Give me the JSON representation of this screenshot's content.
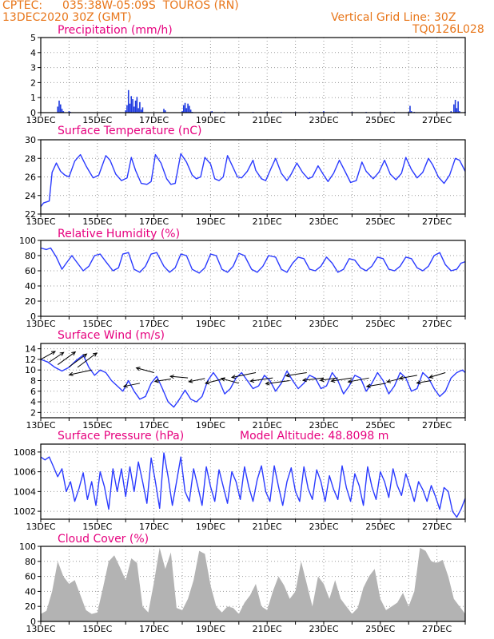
{
  "header": {
    "source": "CPTEC:",
    "location": "035:38W-05:09S  TOUROS (RN)",
    "init_time": "13DEC2020 30Z (GMT)",
    "grid_note": "Vertical Grid Line: 30Z",
    "code": "TQ0126L028"
  },
  "colors": {
    "header": "#e8761a",
    "panel_title": "#e6007e",
    "line": "#2b3bff",
    "bar": "#1f3be0",
    "cloud": "#b3b3b3",
    "arrow": "#000000"
  },
  "date_labels": [
    "13DEC",
    "15DEC",
    "17DEC",
    "19DEC",
    "21DEC",
    "23DEC",
    "25DEC",
    "27DEC"
  ],
  "chart_data": [
    {
      "type": "bar",
      "title": "Precipitation (mm/h)",
      "ylim": [
        0,
        5
      ],
      "yticks": [
        0,
        1,
        2,
        3,
        4,
        5
      ],
      "grid": true,
      "x_days": [
        0.6,
        0.65,
        0.7,
        0.75,
        0.8,
        1.0,
        1.05,
        3.0,
        3.05,
        3.1,
        3.15,
        3.2,
        3.25,
        3.3,
        3.35,
        3.4,
        3.45,
        3.5,
        3.55,
        3.6,
        4.35,
        4.4,
        5.0,
        5.05,
        5.1,
        5.15,
        5.2,
        5.25,
        5.3,
        5.35,
        6.0,
        6.05,
        6.5,
        7.5,
        8.0,
        8.5,
        9.0,
        9.5,
        10.0,
        10.5,
        11.0,
        11.5,
        12.0,
        12.5,
        13.0,
        13.05,
        13.1,
        13.2,
        14.5,
        14.6,
        14.65,
        14.7,
        14.75,
        14.8,
        15.0
      ],
      "values": [
        0.4,
        0.8,
        0.55,
        0.25,
        0.1,
        0.1,
        0.05,
        0.15,
        0.5,
        1.5,
        0.6,
        1.1,
        0.9,
        0.4,
        0.8,
        1.05,
        0.3,
        0.7,
        0.2,
        0.35,
        0.25,
        0.15,
        0.1,
        0.5,
        0.65,
        0.3,
        0.6,
        0.45,
        0.2,
        0.05,
        0.05,
        0.1,
        0.05,
        0.05,
        0.05,
        0.05,
        0.05,
        0.05,
        0.1,
        0.05,
        0.05,
        0.05,
        0.05,
        0.05,
        0.05,
        0.45,
        0.1,
        0.05,
        0.1,
        0.55,
        0.85,
        0.3,
        0.75,
        0.1,
        0.05
      ]
    },
    {
      "type": "line",
      "title": "Surface Temperature (nC)",
      "ylim": [
        22,
        30
      ],
      "yticks": [
        22,
        24,
        26,
        28,
        30
      ],
      "grid": true,
      "x_days": [
        0.0,
        0.1,
        0.3,
        0.4,
        0.55,
        0.7,
        0.85,
        1.0,
        1.2,
        1.4,
        1.6,
        1.75,
        1.85,
        2.05,
        2.3,
        2.45,
        2.65,
        2.85,
        3.05,
        3.2,
        3.35,
        3.55,
        3.75,
        3.9,
        4.05,
        4.25,
        4.45,
        4.6,
        4.75,
        4.95,
        5.15,
        5.35,
        5.5,
        5.65,
        5.8,
        6.0,
        6.15,
        6.3,
        6.45,
        6.6,
        6.8,
        6.95,
        7.1,
        7.3,
        7.5,
        7.6,
        7.8,
        7.95,
        8.15,
        8.3,
        8.5,
        8.7,
        8.85,
        9.05,
        9.25,
        9.45,
        9.6,
        9.8,
        10.0,
        10.15,
        10.35,
        10.55,
        10.75,
        10.95,
        11.15,
        11.35,
        11.5,
        11.75,
        11.95,
        12.15,
        12.35,
        12.55,
        12.75,
        12.9,
        13.1,
        13.3,
        13.5,
        13.7,
        13.85,
        14.05,
        14.25,
        14.45,
        14.65,
        14.8,
        15.0
      ],
      "values": [
        22.8,
        23.2,
        23.4,
        26.5,
        27.5,
        26.6,
        26.2,
        26.0,
        27.7,
        28.4,
        27.2,
        26.4,
        25.9,
        26.2,
        28.3,
        27.8,
        26.3,
        25.6,
        25.9,
        28.1,
        26.7,
        25.3,
        25.2,
        25.5,
        28.4,
        27.5,
        25.8,
        25.2,
        25.3,
        28.5,
        27.6,
        26.2,
        25.8,
        26.0,
        28.1,
        27.4,
        25.8,
        25.6,
        26.0,
        28.3,
        27.0,
        26.0,
        25.9,
        26.6,
        27.8,
        26.7,
        25.8,
        25.6,
        27.0,
        28.0,
        26.4,
        25.6,
        26.3,
        27.5,
        26.5,
        25.8,
        26.0,
        27.2,
        26.2,
        25.5,
        26.4,
        27.8,
        26.6,
        25.4,
        25.6,
        27.6,
        26.6,
        25.8,
        26.5,
        27.8,
        26.3,
        25.7,
        26.4,
        28.1,
        26.8,
        25.9,
        26.5,
        28.0,
        27.3,
        26.0,
        25.3,
        26.2,
        28.0,
        27.8,
        26.6
      ]
    },
    {
      "type": "line",
      "title": "Relative Humidity (%)",
      "ylim": [
        0,
        100
      ],
      "yticks": [
        0,
        20,
        40,
        60,
        80,
        100
      ],
      "grid": true,
      "x_days": [
        0.0,
        0.2,
        0.35,
        0.55,
        0.75,
        0.9,
        1.1,
        1.3,
        1.5,
        1.7,
        1.9,
        2.1,
        2.3,
        2.55,
        2.75,
        2.9,
        3.1,
        3.3,
        3.5,
        3.7,
        3.9,
        4.1,
        4.35,
        4.55,
        4.75,
        4.95,
        5.15,
        5.35,
        5.6,
        5.8,
        6.0,
        6.2,
        6.4,
        6.6,
        6.8,
        7.0,
        7.2,
        7.45,
        7.65,
        7.85,
        8.05,
        8.3,
        8.5,
        8.7,
        8.9,
        9.1,
        9.3,
        9.5,
        9.7,
        9.9,
        10.1,
        10.3,
        10.5,
        10.7,
        10.9,
        11.1,
        11.3,
        11.5,
        11.7,
        11.9,
        12.1,
        12.3,
        12.5,
        12.7,
        12.9,
        13.1,
        13.3,
        13.5,
        13.7,
        13.9,
        14.1,
        14.3,
        14.5,
        14.7,
        14.85,
        15.0
      ],
      "values": [
        90,
        88,
        90,
        78,
        62,
        70,
        80,
        70,
        60,
        66,
        80,
        82,
        72,
        60,
        64,
        82,
        84,
        62,
        58,
        66,
        82,
        84,
        66,
        58,
        64,
        82,
        80,
        62,
        57,
        64,
        82,
        80,
        62,
        58,
        66,
        83,
        80,
        62,
        58,
        66,
        80,
        78,
        62,
        58,
        70,
        78,
        76,
        62,
        60,
        66,
        78,
        70,
        58,
        62,
        76,
        74,
        64,
        60,
        66,
        78,
        76,
        62,
        60,
        66,
        78,
        76,
        64,
        60,
        66,
        80,
        84,
        68,
        60,
        62,
        70,
        72
      ]
    },
    {
      "type": "line",
      "title": "Surface Wind (m/s)",
      "ylim": [
        1,
        15
      ],
      "yticks": [
        2,
        4,
        6,
        8,
        10,
        12,
        14
      ],
      "grid": true,
      "x_days": [
        0.0,
        0.25,
        0.5,
        0.75,
        1.0,
        1.25,
        1.5,
        1.7,
        1.9,
        2.1,
        2.3,
        2.5,
        2.7,
        2.9,
        3.1,
        3.3,
        3.5,
        3.7,
        3.9,
        4.1,
        4.3,
        4.5,
        4.7,
        4.9,
        5.1,
        5.3,
        5.5,
        5.7,
        5.9,
        6.1,
        6.3,
        6.5,
        6.7,
        6.9,
        7.1,
        7.3,
        7.5,
        7.7,
        7.9,
        8.1,
        8.3,
        8.5,
        8.7,
        8.9,
        9.1,
        9.3,
        9.5,
        9.7,
        9.9,
        10.1,
        10.3,
        10.5,
        10.7,
        10.9,
        11.1,
        11.3,
        11.5,
        11.7,
        11.9,
        12.1,
        12.3,
        12.5,
        12.7,
        12.9,
        13.1,
        13.3,
        13.5,
        13.7,
        13.9,
        14.1,
        14.3,
        14.5,
        14.7,
        14.9,
        15.0
      ],
      "values": [
        12.0,
        11.5,
        10.5,
        9.8,
        10.5,
        11.8,
        12.8,
        10.5,
        9.0,
        10.0,
        9.5,
        8.0,
        7.0,
        6.0,
        8.0,
        6.0,
        4.5,
        5.0,
        7.5,
        8.8,
        6.5,
        4.0,
        3.0,
        4.5,
        6.2,
        4.5,
        4.0,
        5.0,
        8.0,
        9.5,
        8.0,
        5.5,
        6.5,
        8.5,
        9.5,
        8.0,
        6.5,
        7.0,
        9.0,
        8.0,
        6.0,
        7.5,
        9.8,
        8.0,
        6.5,
        7.5,
        9.0,
        8.5,
        6.5,
        7.0,
        9.5,
        8.0,
        5.5,
        7.0,
        9.0,
        8.5,
        6.0,
        7.5,
        9.5,
        8.0,
        5.5,
        7.0,
        9.5,
        8.5,
        6.0,
        6.5,
        9.5,
        8.5,
        6.5,
        5.0,
        6.0,
        8.5,
        9.5,
        10.0,
        9.5
      ],
      "arrows": {
        "x_days": [
          0.0,
          0.3,
          0.6,
          1.0,
          1.3,
          1.8,
          3.5,
          4.0,
          4.6,
          5.2,
          5.8,
          6.5,
          7.0,
          7.6,
          8.2,
          8.8,
          9.4,
          10.0,
          10.5,
          11.0,
          11.6,
          12.2,
          12.8,
          13.3,
          13.8,
          14.3
        ],
        "y": [
          12.0,
          11.5,
          11.0,
          10.6,
          10.5,
          10.0,
          7.5,
          9.5,
          8.3,
          8.5,
          8.4,
          8.4,
          7.5,
          9.5,
          8.5,
          8.0,
          9.5,
          8.5,
          8.5,
          8.5,
          8.5,
          7.5,
          8.5,
          9.0,
          8.0,
          9.5
        ],
        "dx": [
          18,
          18,
          22,
          22,
          24,
          -28,
          -20,
          -22,
          -20,
          -22,
          -20,
          -24,
          -22,
          -30,
          -28,
          -30,
          -26,
          -26,
          -22,
          -26,
          -26,
          -24,
          -20,
          -22,
          -18,
          -20
        ],
        "dy": [
          -10,
          -12,
          -16,
          -16,
          -18,
          6,
          4,
          -6,
          3,
          -2,
          4,
          6,
          -6,
          6,
          4,
          4,
          4,
          3,
          3,
          4,
          5,
          4,
          5,
          4,
          3,
          6
        ]
      }
    },
    {
      "type": "line",
      "title": "Surface Pressure (hPa)",
      "annotation": "Model Altitude: 48.8098 m",
      "ylim": [
        1001.2,
        1008.8
      ],
      "yticks": [
        1002,
        1004,
        1006,
        1008
      ],
      "grid": true,
      "x_days": [
        0.0,
        0.15,
        0.3,
        0.45,
        0.6,
        0.75,
        0.9,
        1.05,
        1.2,
        1.35,
        1.5,
        1.65,
        1.8,
        1.95,
        2.1,
        2.25,
        2.4,
        2.55,
        2.7,
        2.85,
        3.0,
        3.15,
        3.3,
        3.45,
        3.6,
        3.75,
        3.9,
        4.05,
        4.2,
        4.35,
        4.5,
        4.65,
        4.8,
        4.95,
        5.1,
        5.25,
        5.4,
        5.55,
        5.7,
        5.85,
        6.0,
        6.15,
        6.3,
        6.45,
        6.6,
        6.75,
        6.9,
        7.05,
        7.2,
        7.35,
        7.5,
        7.65,
        7.8,
        7.95,
        8.1,
        8.25,
        8.4,
        8.55,
        8.7,
        8.85,
        9.0,
        9.15,
        9.3,
        9.45,
        9.6,
        9.75,
        9.9,
        10.05,
        10.2,
        10.35,
        10.5,
        10.65,
        10.8,
        10.95,
        11.1,
        11.25,
        11.4,
        11.55,
        11.7,
        11.85,
        12.0,
        12.15,
        12.3,
        12.45,
        12.6,
        12.75,
        12.9,
        13.05,
        13.2,
        13.35,
        13.5,
        13.65,
        13.8,
        13.95,
        14.1,
        14.25,
        14.4,
        14.55,
        14.7,
        14.85,
        15.0
      ],
      "values": [
        1007.5,
        1007.2,
        1007.5,
        1006.5,
        1005.5,
        1006.3,
        1004.0,
        1005.0,
        1003.0,
        1004.3,
        1005.9,
        1003.2,
        1005.0,
        1002.6,
        1006.0,
        1004.5,
        1002.2,
        1006.3,
        1004.0,
        1006.3,
        1003.5,
        1006.5,
        1004.0,
        1007.0,
        1005.0,
        1002.8,
        1007.4,
        1005.0,
        1002.3,
        1007.9,
        1005.5,
        1002.6,
        1005.0,
        1007.5,
        1004.0,
        1003.0,
        1006.3,
        1004.5,
        1002.6,
        1006.5,
        1004.5,
        1003.0,
        1006.2,
        1004.5,
        1002.8,
        1006.0,
        1005.0,
        1003.2,
        1006.5,
        1004.5,
        1003.0,
        1005.2,
        1006.6,
        1004.0,
        1003.0,
        1006.6,
        1004.5,
        1002.6,
        1005.0,
        1006.4,
        1004.0,
        1003.0,
        1006.5,
        1004.3,
        1003.2,
        1006.2,
        1005.0,
        1003.0,
        1005.6,
        1004.2,
        1003.2,
        1006.6,
        1004.4,
        1003.0,
        1005.8,
        1004.6,
        1002.6,
        1006.5,
        1004.5,
        1003.2,
        1006.0,
        1005.0,
        1003.4,
        1006.3,
        1004.6,
        1003.6,
        1005.8,
        1004.5,
        1003.0,
        1005.0,
        1004.2,
        1003.0,
        1004.6,
        1003.5,
        1002.2,
        1004.4,
        1004.0,
        1002.0,
        1001.4,
        1002.2,
        1003.3
      ]
    },
    {
      "type": "area",
      "title": "Cloud Cover (%)",
      "ylim": [
        0,
        100
      ],
      "yticks": [
        0,
        20,
        40,
        60,
        80,
        100
      ],
      "grid": true,
      "x_days": [
        0.0,
        0.2,
        0.4,
        0.6,
        0.8,
        1.0,
        1.2,
        1.4,
        1.6,
        1.8,
        2.0,
        2.2,
        2.4,
        2.6,
        2.8,
        3.0,
        3.2,
        3.4,
        3.6,
        3.8,
        4.0,
        4.2,
        4.4,
        4.6,
        4.8,
        5.0,
        5.2,
        5.4,
        5.6,
        5.8,
        6.0,
        6.2,
        6.4,
        6.6,
        6.8,
        7.0,
        7.2,
        7.4,
        7.6,
        7.8,
        8.0,
        8.2,
        8.4,
        8.6,
        8.8,
        9.0,
        9.2,
        9.4,
        9.6,
        9.8,
        10.0,
        10.2,
        10.4,
        10.6,
        10.8,
        11.0,
        11.2,
        11.4,
        11.6,
        11.8,
        12.0,
        12.2,
        12.4,
        12.6,
        12.8,
        13.0,
        13.2,
        13.4,
        13.6,
        13.8,
        14.0,
        14.2,
        14.4,
        14.6,
        14.8,
        15.0
      ],
      "values": [
        10,
        14,
        40,
        80,
        60,
        50,
        55,
        35,
        15,
        10,
        12,
        45,
        80,
        88,
        72,
        55,
        84,
        78,
        20,
        12,
        52,
        98,
        70,
        92,
        18,
        15,
        30,
        55,
        94,
        90,
        48,
        20,
        12,
        20,
        18,
        10,
        25,
        35,
        50,
        20,
        15,
        40,
        60,
        48,
        30,
        40,
        80,
        50,
        20,
        60,
        50,
        30,
        55,
        30,
        20,
        10,
        18,
        45,
        60,
        70,
        30,
        15,
        20,
        25,
        38,
        20,
        40,
        98,
        94,
        80,
        78,
        82,
        60,
        30,
        20,
        10
      ]
    }
  ]
}
